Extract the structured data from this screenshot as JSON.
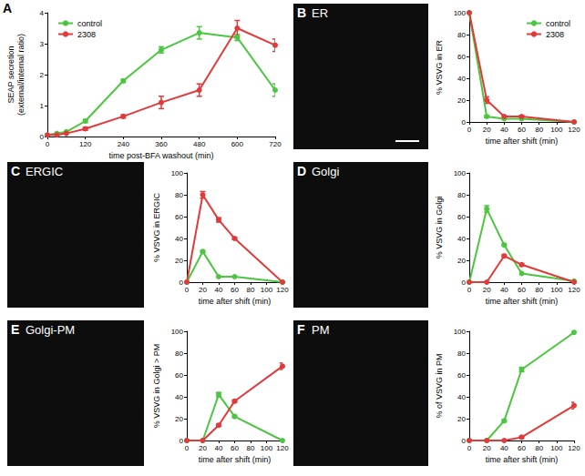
{
  "chart_data": [
    {
      "type": "line",
      "panel": "A",
      "x_label": "time post-BFA washout (min)",
      "y_label": "SEAP secretion\n(external/internal ratio)",
      "x": [
        0,
        30,
        60,
        120,
        240,
        360,
        480,
        600,
        720
      ],
      "xlim": [
        0,
        720
      ],
      "xticks": [
        0,
        120,
        240,
        360,
        480,
        600,
        720
      ],
      "ylim": [
        0,
        4
      ],
      "yticks": [
        0,
        1,
        2,
        3,
        4
      ],
      "grid": false,
      "legend": "upper left",
      "series": [
        {
          "name": "control",
          "color": "#4cc640",
          "marker": "circle",
          "values": [
            0.05,
            0.1,
            0.15,
            0.5,
            1.8,
            2.8,
            3.35,
            3.2,
            1.5
          ],
          "errors": [
            null,
            null,
            null,
            0.05,
            0.05,
            0.1,
            0.2,
            0.1,
            0.2
          ]
        },
        {
          "name": "2308",
          "color": "#e03a3a",
          "marker": "circle",
          "values": [
            0.05,
            0.05,
            0.1,
            0.25,
            0.65,
            1.1,
            1.5,
            3.5,
            2.95
          ],
          "errors": [
            null,
            null,
            null,
            0.05,
            0.05,
            0.2,
            0.2,
            0.25,
            0.2
          ]
        }
      ]
    },
    {
      "type": "line",
      "panel": "B",
      "image_label": "ER",
      "x_label": "time after shift (min)",
      "y_label": "% VSVG in ER",
      "x": [
        0,
        20,
        40,
        60,
        120
      ],
      "xlim": [
        0,
        120
      ],
      "xticks": [
        0,
        20,
        40,
        60,
        80,
        100,
        120
      ],
      "ylim": [
        0,
        100
      ],
      "yticks": [
        0,
        20,
        40,
        60,
        80,
        100
      ],
      "grid": false,
      "legend": "upper right",
      "series": [
        {
          "name": "control",
          "color": "#4cc640",
          "marker": "circle",
          "values": [
            100,
            5,
            3,
            3,
            0
          ],
          "errors": [
            null,
            1,
            null,
            null,
            null
          ]
        },
        {
          "name": "2308",
          "color": "#e03a3a",
          "marker": "circle",
          "values": [
            100,
            20,
            5,
            5,
            0
          ],
          "errors": [
            null,
            3,
            1,
            1,
            null
          ]
        }
      ]
    },
    {
      "type": "line",
      "panel": "C",
      "image_label": "ERGIC",
      "x_label": "time after shift (min)",
      "y_label": "% VSVG in ERGIC",
      "x": [
        0,
        20,
        40,
        60,
        120
      ],
      "xlim": [
        0,
        120
      ],
      "xticks": [
        0,
        20,
        40,
        60,
        80,
        100,
        120
      ],
      "ylim": [
        0,
        100
      ],
      "yticks": [
        0,
        20,
        40,
        60,
        80,
        100
      ],
      "grid": false,
      "series": [
        {
          "name": "control",
          "color": "#4cc640",
          "marker": "circle",
          "values": [
            0,
            28,
            5,
            5,
            0
          ],
          "errors": [
            null,
            1,
            null,
            null,
            null
          ]
        },
        {
          "name": "2308",
          "color": "#e03a3a",
          "marker": "circle",
          "values": [
            0,
            80,
            57,
            40,
            0
          ],
          "errors": [
            null,
            3,
            2,
            1,
            null
          ]
        }
      ]
    },
    {
      "type": "line",
      "panel": "D",
      "image_label": "Golgi",
      "x_label": "time after shift (min)",
      "y_label": "% VSVG in Golgi",
      "x": [
        0,
        20,
        40,
        60,
        120
      ],
      "xlim": [
        0,
        120
      ],
      "xticks": [
        0,
        20,
        40,
        60,
        80,
        100,
        120
      ],
      "ylim": [
        0,
        100
      ],
      "yticks": [
        0,
        20,
        40,
        60,
        80,
        100
      ],
      "grid": false,
      "series": [
        {
          "name": "control",
          "color": "#4cc640",
          "marker": "circle",
          "values": [
            0,
            67,
            34,
            8,
            1
          ],
          "errors": [
            null,
            3,
            1,
            null,
            null
          ]
        },
        {
          "name": "2308",
          "color": "#e03a3a",
          "marker": "circle",
          "values": [
            0,
            0,
            24,
            16,
            0
          ],
          "errors": [
            null,
            null,
            1,
            1,
            null
          ]
        }
      ]
    },
    {
      "type": "line",
      "panel": "E",
      "image_label": "Golgi-PM",
      "x_label": "time after shift (min)",
      "y_label": "% VSVG in Golgi > PM",
      "x": [
        0,
        20,
        40,
        60,
        120
      ],
      "xlim": [
        0,
        120
      ],
      "xticks": [
        0,
        20,
        40,
        60,
        80,
        100,
        120
      ],
      "ylim": [
        0,
        100
      ],
      "yticks": [
        0,
        20,
        40,
        60,
        80,
        100
      ],
      "grid": false,
      "series": [
        {
          "name": "control",
          "color": "#4cc640",
          "marker": "circle",
          "values": [
            0,
            0,
            42,
            22,
            0
          ],
          "errors": [
            null,
            null,
            2,
            1,
            null
          ]
        },
        {
          "name": "2308",
          "color": "#e03a3a",
          "marker": "circle",
          "values": [
            0,
            0,
            14,
            36,
            68
          ],
          "errors": [
            null,
            null,
            1,
            1,
            3
          ]
        }
      ]
    },
    {
      "type": "line",
      "panel": "F",
      "image_label": "PM",
      "x_label": "time after shift (min)",
      "y_label": "% of VSVG in PM",
      "x": [
        0,
        20,
        40,
        60,
        120
      ],
      "xlim": [
        0,
        120
      ],
      "xticks": [
        0,
        20,
        40,
        60,
        80,
        100,
        120
      ],
      "ylim": [
        0,
        100
      ],
      "yticks": [
        0,
        20,
        40,
        60,
        80,
        100
      ],
      "grid": false,
      "series": [
        {
          "name": "control",
          "color": "#4cc640",
          "marker": "circle",
          "values": [
            0,
            0,
            18,
            65,
            99
          ],
          "errors": [
            null,
            null,
            1,
            2,
            1
          ]
        },
        {
          "name": "2308",
          "color": "#e03a3a",
          "marker": "circle",
          "values": [
            0,
            0,
            0,
            3,
            32
          ],
          "errors": [
            null,
            null,
            null,
            1,
            3
          ]
        }
      ]
    }
  ]
}
